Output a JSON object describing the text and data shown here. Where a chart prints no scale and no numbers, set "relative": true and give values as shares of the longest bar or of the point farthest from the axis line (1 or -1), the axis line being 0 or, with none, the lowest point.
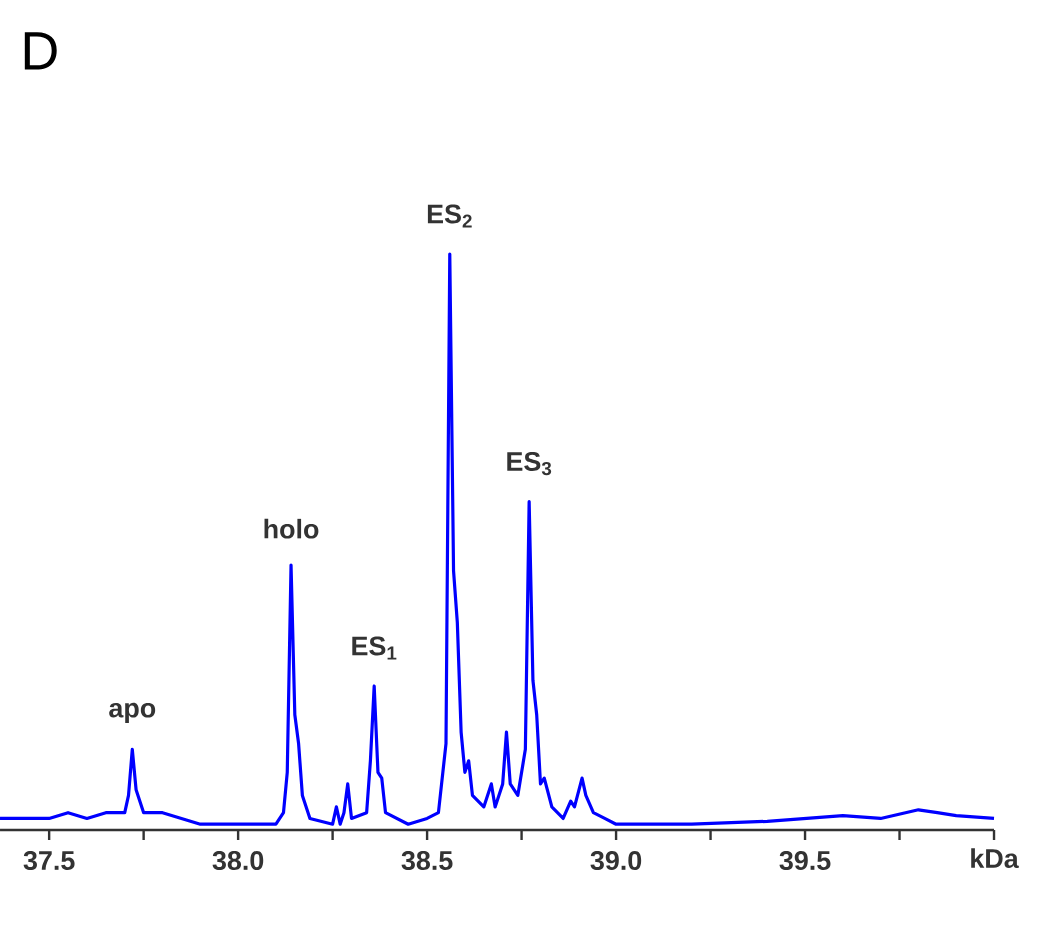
{
  "chart_data": {
    "type": "line",
    "title": "D",
    "xlabel": "kDa",
    "relative": true,
    "x": [
      37.37,
      37.45,
      37.5,
      37.55,
      37.6,
      37.65,
      37.7,
      37.71,
      37.72,
      37.73,
      37.75,
      37.8,
      37.85,
      37.9,
      38.0,
      38.1,
      38.12,
      38.13,
      38.14,
      38.15,
      38.16,
      38.17,
      38.19,
      38.25,
      38.26,
      38.27,
      38.28,
      38.29,
      38.3,
      38.34,
      38.35,
      38.36,
      38.37,
      38.38,
      38.39,
      38.45,
      38.5,
      38.53,
      38.55,
      38.56,
      38.57,
      38.58,
      38.59,
      38.6,
      38.61,
      38.62,
      38.65,
      38.67,
      38.68,
      38.7,
      38.71,
      38.72,
      38.74,
      38.76,
      38.77,
      38.78,
      38.79,
      38.8,
      38.81,
      38.83,
      38.86,
      38.88,
      38.89,
      38.91,
      38.92,
      38.94,
      38.97,
      39.0,
      39.2,
      39.4,
      39.5,
      39.6,
      39.7,
      39.8,
      39.85,
      39.9,
      40.0
    ],
    "series": [
      {
        "color": "#0000ff",
        "values": [
          0.02,
          0.02,
          0.02,
          0.03,
          0.02,
          0.03,
          0.03,
          0.06,
          0.14,
          0.07,
          0.03,
          0.03,
          0.02,
          0.01,
          0.01,
          0.01,
          0.03,
          0.1,
          0.46,
          0.2,
          0.15,
          0.06,
          0.02,
          0.01,
          0.04,
          0.01,
          0.03,
          0.08,
          0.02,
          0.03,
          0.12,
          0.25,
          0.1,
          0.09,
          0.03,
          0.01,
          0.02,
          0.03,
          0.15,
          1.0,
          0.45,
          0.36,
          0.17,
          0.1,
          0.12,
          0.06,
          0.04,
          0.08,
          0.04,
          0.08,
          0.17,
          0.08,
          0.06,
          0.14,
          0.57,
          0.26,
          0.2,
          0.08,
          0.09,
          0.04,
          0.02,
          0.05,
          0.04,
          0.09,
          0.06,
          0.03,
          0.02,
          0.01,
          0.01,
          0.015,
          0.02,
          0.025,
          0.02,
          0.035,
          0.03,
          0.025,
          0.02
        ]
      }
    ],
    "xlim": [
      37.37,
      40.0
    ],
    "xticks": [
      37.5,
      {
        "value": 37.75,
        "label": null
      },
      {
        "value": 38,
        "label": "38.0"
      },
      {
        "value": 38.25,
        "label": null
      },
      38.5,
      {
        "value": 38.75,
        "label": null
      },
      {
        "value": 39,
        "label": "39.0"
      },
      {
        "value": 39.25,
        "label": null
      },
      39.5,
      {
        "value": 39.75,
        "label": null
      },
      {
        "value": 40,
        "label": null
      }
    ],
    "annotations": [
      {
        "text": "apo",
        "x": 37.72,
        "y": 0.14
      },
      {
        "text": "holo",
        "x": 38.14,
        "y": 0.46
      },
      {
        "text": "ES$_{1}$",
        "x": 38.36,
        "y": 0.25
      },
      {
        "text": "ES$_{2}$",
        "x": 38.56,
        "y": 1.0
      },
      {
        "text": "ES$_{3}$",
        "x": 38.77,
        "y": 0.57
      }
    ]
  }
}
